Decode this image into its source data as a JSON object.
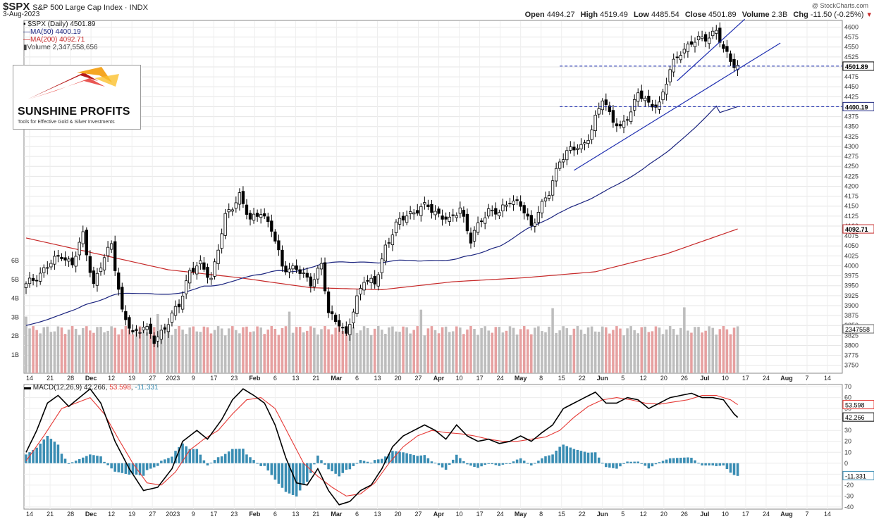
{
  "header": {
    "symbol": "$SPX",
    "name": "S&P 500 Large Cap Index",
    "exchange": "INDX",
    "date": "3-Aug-2023",
    "copyright": "@ StockCharts.com",
    "open_label": "Open",
    "open": "4494.27",
    "high_label": "High",
    "high": "4519.49",
    "low_label": "Low",
    "low": "4485.54",
    "close_label": "Close",
    "close": "4501.89",
    "volume_label": "Volume",
    "volume": "2.3B",
    "chg_label": "Chg",
    "chg": "-11.50 (-0.25%)"
  },
  "legend": {
    "price": "$SPX (Daily) 4501.89",
    "ma50": "MA(50) 4400.19",
    "ma200": "MA(200) 4092.71",
    "volume": "Volume 2,347,558,656"
  },
  "logo": {
    "brand": "SUNSHINE PROFITS",
    "tagline": "Tools for Effective Gold & Silver Investments"
  },
  "macd_legend": {
    "label": "MACD(12,26,9)",
    "macd": "42.266",
    "signal": "53.598",
    "hist": "-11.331"
  },
  "colors": {
    "up": "#000000",
    "down": "#000000",
    "ma50": "#1a237e",
    "ma200": "#c62828",
    "vol_up": "#bdbdbd",
    "vol_down": "#e6a0a0",
    "hist": "#3a8db3",
    "macd": "#000000",
    "signal": "#e53935",
    "trend": "#1f2fb0",
    "hline": "#1f2fb0"
  },
  "chart_data": [
    {
      "type": "candlestick",
      "title": "$SPX S&P 500 Large Cap Index",
      "price_axis_ticks": [
        3750,
        3775,
        3800,
        3825,
        3850,
        3875,
        3900,
        3925,
        3950,
        3975,
        4000,
        4025,
        4050,
        4075,
        4100,
        4125,
        4150,
        4175,
        4200,
        4225,
        4250,
        4275,
        4300,
        4325,
        4350,
        4375,
        4400,
        4425,
        4450,
        4475,
        4500,
        4525,
        4550,
        4575,
        4600
      ],
      "price_range": [
        3730,
        4615
      ],
      "volume_axis_ticks": [
        "1B",
        "2B",
        "3B",
        "4B",
        "5B",
        "6B"
      ],
      "x_tick_labels": [
        "14",
        "21",
        "28",
        "Dec",
        "12",
        "19",
        "27",
        "2023",
        "9",
        "17",
        "23",
        "Feb",
        "6",
        "13",
        "21",
        "Mar",
        "6",
        "13",
        "20",
        "27",
        "Apr",
        "10",
        "17",
        "24",
        "May",
        "8",
        "15",
        "22",
        "Jun",
        "5",
        "12",
        "20",
        "26",
        "Jul",
        "10",
        "17",
        "24",
        "Aug",
        "7",
        "14"
      ],
      "price_labels": {
        "close": "4501.89",
        "ma50": "4400.19",
        "ma200": "4092.71",
        "volume": "2347558"
      },
      "ohlc_anchor_closes": [
        [
          0,
          3950
        ],
        [
          5,
          3990
        ],
        [
          10,
          4030
        ],
        [
          13,
          4000
        ],
        [
          16,
          4080
        ],
        [
          19,
          3950
        ],
        [
          22,
          4020
        ],
        [
          24,
          4060
        ],
        [
          27,
          3880
        ],
        [
          30,
          3830
        ],
        [
          33,
          3850
        ],
        [
          36,
          3810
        ],
        [
          40,
          3860
        ],
        [
          43,
          3900
        ],
        [
          46,
          3990
        ],
        [
          49,
          4000
        ],
        [
          52,
          3970
        ],
        [
          56,
          4120
        ],
        [
          60,
          4180
        ],
        [
          63,
          4110
        ],
        [
          66,
          4140
        ],
        [
          69,
          4090
        ],
        [
          72,
          4000
        ],
        [
          76,
          3990
        ],
        [
          80,
          3960
        ],
        [
          83,
          4000
        ],
        [
          85,
          3880
        ],
        [
          88,
          3860
        ],
        [
          90,
          3820
        ],
        [
          93,
          3920
        ],
        [
          95,
          3970
        ],
        [
          98,
          3950
        ],
        [
          101,
          4050
        ],
        [
          104,
          4100
        ],
        [
          107,
          4130
        ],
        [
          110,
          4140
        ],
        [
          113,
          4150
        ],
        [
          116,
          4130
        ],
        [
          119,
          4110
        ],
        [
          122,
          4150
        ],
        [
          125,
          4060
        ],
        [
          128,
          4120
        ],
        [
          130,
          4140
        ],
        [
          133,
          4130
        ],
        [
          136,
          4170
        ],
        [
          139,
          4150
        ],
        [
          142,
          4100
        ],
        [
          144,
          4140
        ],
        [
          147,
          4180
        ],
        [
          150,
          4270
        ],
        [
          153,
          4290
        ],
        [
          156,
          4300
        ],
        [
          159,
          4340
        ],
        [
          162,
          4420
        ],
        [
          165,
          4370
        ],
        [
          167,
          4340
        ],
        [
          170,
          4390
        ],
        [
          172,
          4440
        ],
        [
          175,
          4400
        ],
        [
          178,
          4410
        ],
        [
          181,
          4490
        ],
        [
          184,
          4540
        ],
        [
          187,
          4560
        ],
        [
          190,
          4570
        ],
        [
          192,
          4580
        ],
        [
          194,
          4590
        ],
        [
          196,
          4540
        ],
        [
          199,
          4510
        ],
        [
          200,
          4502
        ]
      ]
    },
    {
      "type": "line",
      "title": "MACD(12,26,9)",
      "y_axis_ticks": [
        -40,
        -30,
        -20,
        -10,
        0,
        10,
        20,
        30,
        40,
        50,
        60,
        70
      ],
      "y_range": [
        -42,
        72
      ],
      "series": [
        {
          "name": "MACD(12,26,9)",
          "anchors": [
            [
              0,
              10
            ],
            [
              3,
              30
            ],
            [
              6,
              55
            ],
            [
              9,
              62
            ],
            [
              12,
              52
            ],
            [
              15,
              60
            ],
            [
              18,
              68
            ],
            [
              21,
              55
            ],
            [
              25,
              20
            ],
            [
              29,
              -5
            ],
            [
              33,
              -25
            ],
            [
              37,
              -22
            ],
            [
              41,
              -5
            ],
            [
              44,
              20
            ],
            [
              48,
              30
            ],
            [
              51,
              22
            ],
            [
              55,
              40
            ],
            [
              58,
              58
            ],
            [
              61,
              68
            ],
            [
              64,
              62
            ],
            [
              67,
              55
            ],
            [
              70,
              35
            ],
            [
              73,
              5
            ],
            [
              76,
              -18
            ],
            [
              79,
              -20
            ],
            [
              82,
              -5
            ],
            [
              85,
              -25
            ],
            [
              88,
              -38
            ],
            [
              91,
              -35
            ],
            [
              94,
              -25
            ],
            [
              97,
              -20
            ],
            [
              100,
              -5
            ],
            [
              103,
              15
            ],
            [
              106,
              25
            ],
            [
              109,
              30
            ],
            [
              112,
              35
            ],
            [
              115,
              30
            ],
            [
              118,
              22
            ],
            [
              121,
              35
            ],
            [
              124,
              25
            ],
            [
              127,
              20
            ],
            [
              130,
              22
            ],
            [
              133,
              18
            ],
            [
              136,
              20
            ],
            [
              139,
              25
            ],
            [
              142,
              20
            ],
            [
              145,
              28
            ],
            [
              148,
              35
            ],
            [
              151,
              50
            ],
            [
              154,
              55
            ],
            [
              157,
              60
            ],
            [
              160,
              65
            ],
            [
              163,
              55
            ],
            [
              166,
              55
            ],
            [
              169,
              60
            ],
            [
              172,
              58
            ],
            [
              175,
              50
            ],
            [
              178,
              55
            ],
            [
              181,
              60
            ],
            [
              184,
              62
            ],
            [
              187,
              64
            ],
            [
              190,
              60
            ],
            [
              193,
              60
            ],
            [
              196,
              58
            ],
            [
              199,
              45
            ],
            [
              200,
              42
            ]
          ]
        },
        {
          "name": "Signal",
          "anchors": [
            [
              0,
              2
            ],
            [
              5,
              25
            ],
            [
              10,
              50
            ],
            [
              14,
              55
            ],
            [
              18,
              60
            ],
            [
              22,
              45
            ],
            [
              26,
              22
            ],
            [
              30,
              0
            ],
            [
              34,
              -18
            ],
            [
              38,
              -20
            ],
            [
              42,
              -8
            ],
            [
              46,
              12
            ],
            [
              50,
              22
            ],
            [
              54,
              30
            ],
            [
              58,
              45
            ],
            [
              62,
              58
            ],
            [
              66,
              60
            ],
            [
              70,
              50
            ],
            [
              74,
              25
            ],
            [
              78,
              0
            ],
            [
              82,
              -12
            ],
            [
              86,
              -22
            ],
            [
              90,
              -30
            ],
            [
              94,
              -28
            ],
            [
              98,
              -18
            ],
            [
              102,
              0
            ],
            [
              106,
              15
            ],
            [
              110,
              25
            ],
            [
              114,
              30
            ],
            [
              118,
              28
            ],
            [
              122,
              27
            ],
            [
              126,
              25
            ],
            [
              130,
              22
            ],
            [
              134,
              20
            ],
            [
              138,
              20
            ],
            [
              142,
              22
            ],
            [
              146,
              24
            ],
            [
              150,
              30
            ],
            [
              154,
              42
            ],
            [
              158,
              52
            ],
            [
              162,
              58
            ],
            [
              166,
              60
            ],
            [
              170,
              58
            ],
            [
              174,
              55
            ],
            [
              178,
              54
            ],
            [
              182,
              56
            ],
            [
              186,
              58
            ],
            [
              190,
              62
            ],
            [
              194,
              62
            ],
            [
              198,
              58
            ],
            [
              200,
              53.6
            ]
          ]
        }
      ]
    }
  ]
}
